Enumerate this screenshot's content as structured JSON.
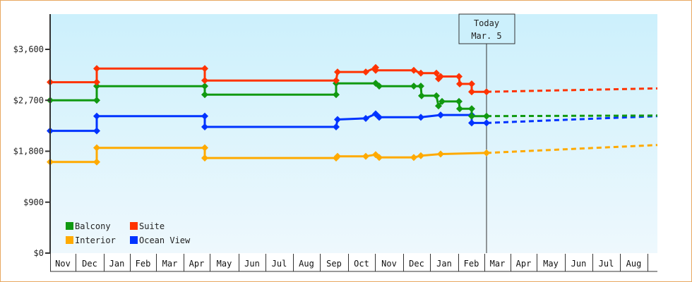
{
  "chart_data": {
    "type": "line",
    "title": "",
    "xlabel": "",
    "ylabel": "",
    "ylim": [
      0,
      4200
    ],
    "y_ticks": [
      "$0",
      "$900",
      "$1,800",
      "$2,700",
      "$3,600"
    ],
    "y_tick_values": [
      0,
      900,
      1800,
      2700,
      3600
    ],
    "x_tick_labels": [
      "Nov",
      "Dec",
      "Jan",
      "Feb",
      "Mar",
      "Apr",
      "May",
      "Jun",
      "Jul",
      "Aug",
      "Sep",
      "Oct",
      "Nov",
      "Dec",
      "Jan",
      "Feb",
      "Mar",
      "Apr",
      "May",
      "Jun",
      "Jul",
      "Aug"
    ],
    "grid": false,
    "legend_position": "lower-left",
    "annotation": {
      "line1": "Today",
      "line2": "Mar. 5"
    },
    "style": "step lines with diamond markers; dotted projection after today",
    "series": [
      {
        "name": "Balcony",
        "color": "#119911",
        "points": [
          [
            "Nov",
            2700
          ],
          [
            "Dec",
            2700
          ],
          [
            "Dec",
            2950
          ],
          [
            "Apr",
            2950
          ],
          [
            "Apr",
            2800
          ],
          [
            "Sep",
            2800
          ],
          [
            "Sep",
            3000
          ],
          [
            "Oct",
            3000
          ],
          [
            "Nov",
            2950
          ],
          [
            "Dec",
            2950
          ],
          [
            "Dec",
            2780
          ],
          [
            "Jan",
            2780
          ],
          [
            "Jan",
            2600
          ],
          [
            "Jan",
            2680
          ],
          [
            "Feb",
            2680
          ],
          [
            "Feb",
            2550
          ],
          [
            "Feb",
            2420
          ],
          [
            "Mar 5",
            2420
          ]
        ],
        "projection": [
          [
            "Mar 5",
            2420
          ],
          [
            "Aug",
            2430
          ]
        ]
      },
      {
        "name": "Suite",
        "color": "#ff3300",
        "points": [
          [
            "Nov",
            3020
          ],
          [
            "Dec",
            3020
          ],
          [
            "Dec",
            3260
          ],
          [
            "Apr",
            3260
          ],
          [
            "Apr",
            3050
          ],
          [
            "Sep",
            3050
          ],
          [
            "Sep",
            3200
          ],
          [
            "Oct",
            3220
          ],
          [
            "Nov",
            3280
          ],
          [
            "Nov",
            3230
          ],
          [
            "Dec",
            3230
          ],
          [
            "Dec",
            3180
          ],
          [
            "Jan",
            3180
          ],
          [
            "Jan",
            3080
          ],
          [
            "Jan",
            3120
          ],
          [
            "Feb",
            3120
          ],
          [
            "Feb",
            2990
          ],
          [
            "Feb",
            2850
          ],
          [
            "Mar 5",
            2850
          ]
        ],
        "projection": [
          [
            "Mar 5",
            2850
          ],
          [
            "Aug",
            2910
          ]
        ]
      },
      {
        "name": "Interior",
        "color": "#ffaa00",
        "points": [
          [
            "Nov",
            1610
          ],
          [
            "Dec",
            1610
          ],
          [
            "Dec",
            1860
          ],
          [
            "Apr",
            1860
          ],
          [
            "Apr",
            1680
          ],
          [
            "Sep",
            1680
          ],
          [
            "Sep",
            1710
          ],
          [
            "Oct",
            1720
          ],
          [
            "Nov",
            1740
          ],
          [
            "Nov",
            1690
          ],
          [
            "Dec",
            1690
          ],
          [
            "Dec",
            1740
          ],
          [
            "Jan",
            1760
          ],
          [
            "Mar 5",
            1770
          ]
        ],
        "projection": [
          [
            "Mar 5",
            1770
          ],
          [
            "Aug",
            1910
          ]
        ]
      },
      {
        "name": "Ocean View",
        "color": "#0033ff",
        "points": [
          [
            "Nov",
            2160
          ],
          [
            "Dec",
            2160
          ],
          [
            "Dec",
            2420
          ],
          [
            "Apr",
            2420
          ],
          [
            "Apr",
            2230
          ],
          [
            "Sep",
            2230
          ],
          [
            "Sep",
            2360
          ],
          [
            "Oct",
            2380
          ],
          [
            "Nov",
            2460
          ],
          [
            "Nov",
            2400
          ],
          [
            "Dec",
            2400
          ],
          [
            "Jan",
            2440
          ],
          [
            "Feb",
            2440
          ],
          [
            "Feb",
            2300
          ],
          [
            "Mar 5",
            2300
          ]
        ],
        "projection": [
          [
            "Mar 5",
            2300
          ],
          [
            "Aug",
            2420
          ]
        ]
      }
    ]
  },
  "legend": {
    "items": [
      {
        "label": "Balcony",
        "color": "#119911"
      },
      {
        "label": "Suite",
        "color": "#ff3300"
      },
      {
        "label": "Interior",
        "color": "#ffaa00"
      },
      {
        "label": "Ocean View",
        "color": "#0033ff"
      }
    ]
  },
  "today": {
    "line1": "Today",
    "line2": "Mar. 5"
  }
}
